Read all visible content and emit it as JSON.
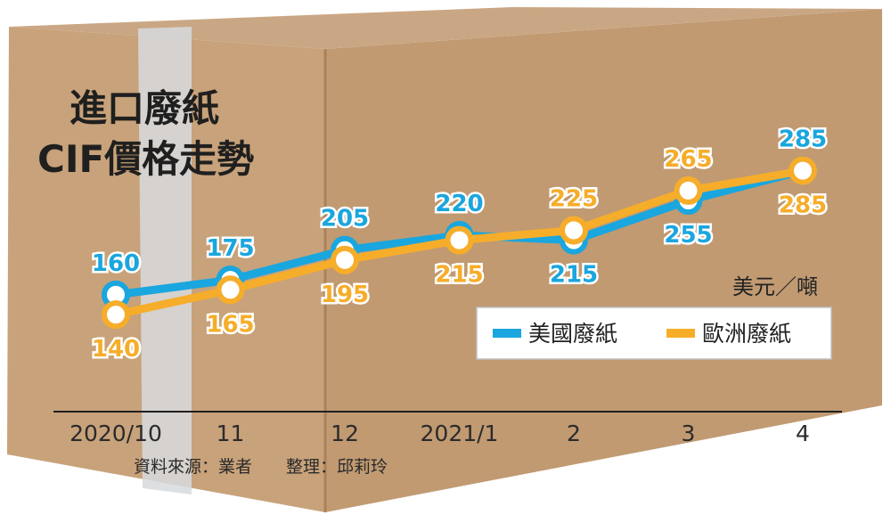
{
  "title_line1": "進口廢紙",
  "title_line2": "CIF價格走勢",
  "unit": "美元／噸",
  "source": "資料來源：業者　　整理：邱莉玲",
  "colors": {
    "us": "#1aa6de",
    "eu": "#f6ad2a",
    "box": "#c49f78",
    "box_shadow": "#a9825c",
    "tape": "#d7dbde"
  },
  "chart_data": {
    "type": "line",
    "categories": [
      "2020/10",
      "11",
      "12",
      "2021/1",
      "2",
      "3",
      "4"
    ],
    "series": [
      {
        "name": "美國廢紙",
        "values": [
          160,
          175,
          205,
          220,
          215,
          255,
          285
        ]
      },
      {
        "name": "歐洲廢紙",
        "values": [
          140,
          165,
          195,
          215,
          225,
          265,
          285
        ]
      }
    ],
    "ylabel": "美元／噸",
    "legend": "bottom-right"
  }
}
